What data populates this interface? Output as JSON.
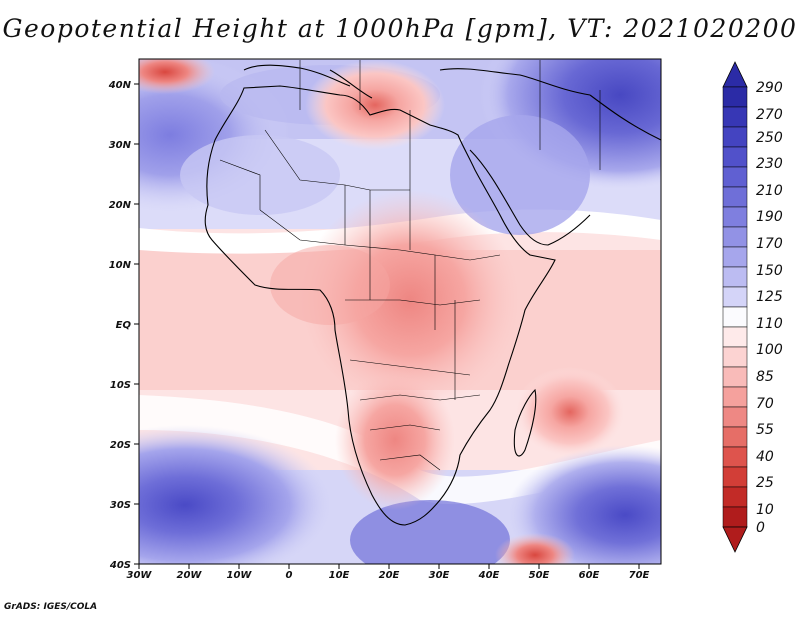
{
  "title": "Geopotential Height at 1000hPa [gpm], VT: 2021020200",
  "credit": "GrADS: IGES/COLA",
  "axes": {
    "lon_labels": [
      "30W",
      "20W",
      "10W",
      "0",
      "10E",
      "20E",
      "30E",
      "40E",
      "50E",
      "60E",
      "70E"
    ],
    "lat_labels": [
      "40N",
      "30N",
      "20N",
      "10N",
      "EQ",
      "10S",
      "20S",
      "30S",
      "40S"
    ]
  },
  "colorbar": {
    "levels": [
      "290",
      "270",
      "250",
      "230",
      "210",
      "190",
      "170",
      "150",
      "125",
      "110",
      "100",
      "85",
      "70",
      "55",
      "40",
      "25",
      "10",
      "0"
    ],
    "colors": [
      "#2b2ba6",
      "#3a3ab8",
      "#4a4ac6",
      "#5b5bd0",
      "#6e6ed8",
      "#8282e0",
      "#9a9ae8",
      "#b4b4f0",
      "#d0d0f7",
      "#ffffff",
      "#fde2e2",
      "#fbc6c4",
      "#f6a6a2",
      "#ee8682",
      "#e4665f",
      "#d9473f",
      "#c62f2a",
      "#b01c1c"
    ]
  },
  "map": {
    "ocean_high_colors": [
      "#4747c0",
      "#6e6ed8",
      "#9a9ae8",
      "#c0c0f3",
      "#e0e0fa"
    ],
    "land_low_colors": [
      "#fde2e2",
      "#fbc6c4",
      "#f6a6a2",
      "#ee8682",
      "#d9473f"
    ]
  }
}
